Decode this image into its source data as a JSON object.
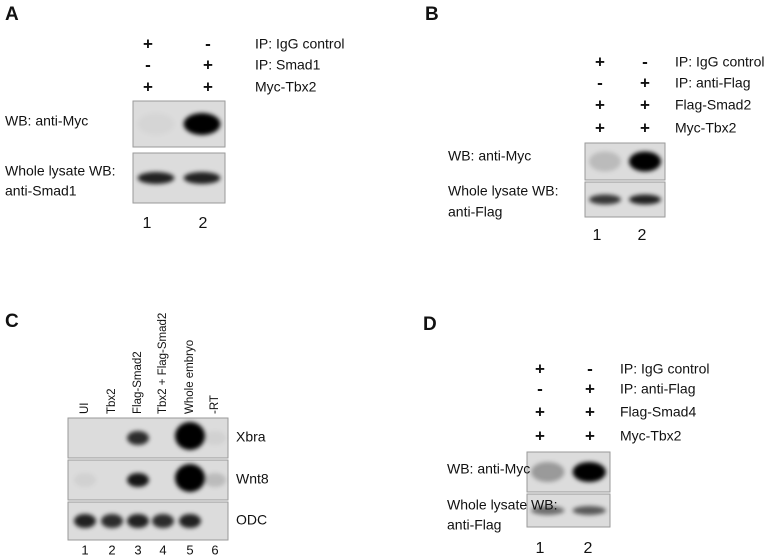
{
  "panels": [
    {
      "label": "A",
      "rows": [
        {
          "signs": [
            "+",
            "-"
          ],
          "text": "IP: IgG control"
        },
        {
          "signs": [
            "-",
            "+"
          ],
          "text": "IP: Smad1"
        },
        {
          "signs": [
            "+",
            "+"
          ],
          "text": "Myc-Tbx2"
        }
      ],
      "blots": [
        {
          "lines": [
            "WB: anti-Myc"
          ]
        },
        {
          "lines": [
            "Whole lysate WB:",
            "anti-Smad1"
          ]
        }
      ],
      "lanes": [
        "1",
        "2"
      ]
    },
    {
      "label": "B",
      "rows": [
        {
          "signs": [
            "+",
            "-"
          ],
          "text": "IP: IgG control"
        },
        {
          "signs": [
            "-",
            "+"
          ],
          "text": "IP: anti-Flag"
        },
        {
          "signs": [
            "+",
            "+"
          ],
          "text": "Flag-Smad2"
        },
        {
          "signs": [
            "+",
            "+"
          ],
          "text": "Myc-Tbx2"
        }
      ],
      "blots": [
        {
          "lines": [
            "WB: anti-Myc"
          ]
        },
        {
          "lines": [
            "Whole lysate WB:",
            "anti-Flag"
          ]
        }
      ],
      "lanes": [
        "1",
        "2"
      ]
    },
    {
      "label": "C",
      "columns": [
        "UI",
        "Tbx2",
        "Flag-Smad2",
        "Tbx2 + Flag-Smad2",
        "Whole embryo",
        "-RT"
      ],
      "blots": [
        "Xbra",
        "Wnt8",
        "ODC"
      ],
      "lanes": [
        "1",
        "2",
        "3",
        "4",
        "5",
        "6"
      ]
    },
    {
      "label": "D",
      "rows": [
        {
          "signs": [
            "+",
            "-"
          ],
          "text": "IP: IgG control"
        },
        {
          "signs": [
            "-",
            "+"
          ],
          "text": "IP: anti-Flag"
        },
        {
          "signs": [
            "+",
            "+"
          ],
          "text": "Flag-Smad4"
        },
        {
          "signs": [
            "+",
            "+"
          ],
          "text": "Myc-Tbx2"
        }
      ],
      "blots": [
        {
          "lines": [
            "WB: anti-Myc"
          ]
        },
        {
          "lines": [
            "Whole lysate WB:",
            "anti-Flag"
          ]
        }
      ],
      "lanes": [
        "1",
        "2"
      ]
    }
  ]
}
